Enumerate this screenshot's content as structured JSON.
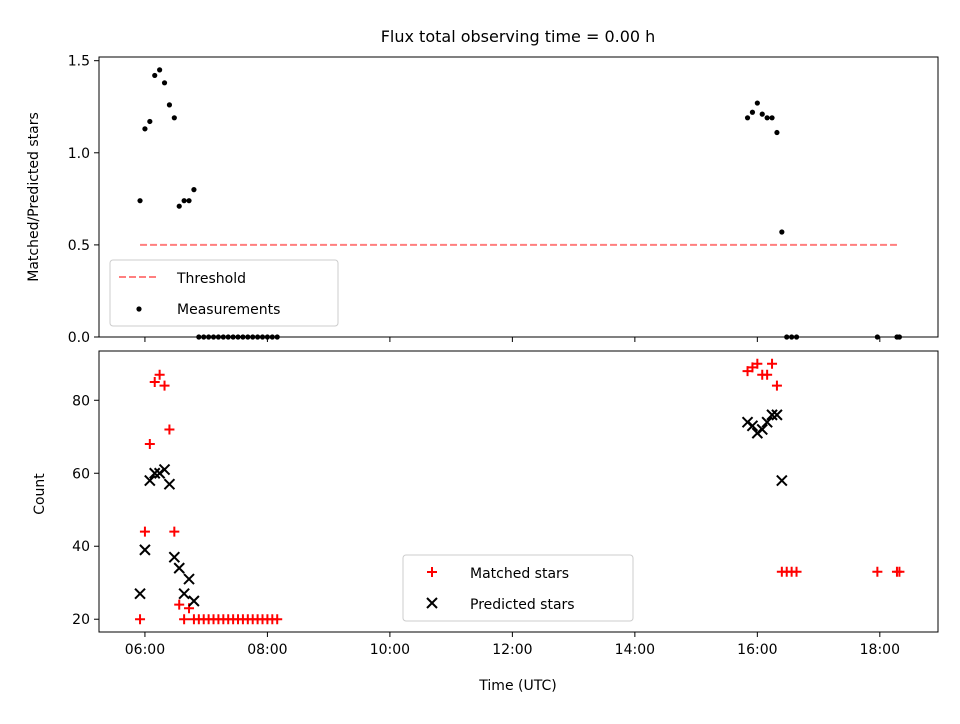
{
  "chart_data": [
    {
      "type": "scatter",
      "title": "Flux total observing time = 0.00 h",
      "xlabel": "",
      "ylabel": "Matched/Predicted stars",
      "xlim": [
        5.25,
        18.95
      ],
      "ylim": [
        0,
        1.52
      ],
      "x_ticks": [
        6,
        8,
        10,
        12,
        14,
        16,
        18
      ],
      "x_tick_labels": [
        "",
        "",
        "",
        "",
        "",
        "",
        ""
      ],
      "y_ticks": [
        0,
        0.5,
        1.0,
        1.5
      ],
      "y_tick_labels": [
        "0.0",
        "0.5",
        "1.0",
        "1.5"
      ],
      "legend_position": "lower-left",
      "series": [
        {
          "name": "Threshold",
          "kind": "line",
          "style": "dashed",
          "color": "#ff7f7f",
          "x": [
            5.92,
            18.28
          ],
          "y": [
            0.5,
            0.5
          ]
        },
        {
          "name": "Measurements",
          "kind": "scatter",
          "marker": "dot",
          "color": "#000000",
          "x": [
            5.92,
            6.0,
            6.08,
            6.16,
            6.24,
            6.32,
            6.4,
            6.48,
            6.56,
            6.64,
            6.72,
            6.8,
            6.88,
            6.96,
            7.04,
            7.12,
            7.2,
            7.28,
            7.36,
            7.44,
            7.52,
            7.6,
            7.68,
            7.76,
            7.84,
            7.92,
            8.0,
            8.08,
            8.16,
            15.84,
            15.92,
            16.0,
            16.08,
            16.16,
            16.24,
            16.32,
            16.4,
            16.48,
            16.56,
            16.64,
            17.96,
            18.28,
            18.32
          ],
          "y": [
            0.74,
            1.13,
            1.17,
            1.42,
            1.45,
            1.38,
            1.26,
            1.19,
            0.71,
            0.74,
            0.74,
            0.8,
            0,
            0,
            0,
            0,
            0,
            0,
            0,
            0,
            0,
            0,
            0,
            0,
            0,
            0,
            0,
            0,
            0,
            1.19,
            1.22,
            1.27,
            1.21,
            1.19,
            1.19,
            1.11,
            0.57,
            0,
            0,
            0,
            0,
            0,
            0
          ]
        }
      ]
    },
    {
      "type": "scatter",
      "title": "",
      "xlabel": "Time (UTC)",
      "ylabel": "Count",
      "xlim": [
        5.25,
        18.95
      ],
      "ylim": [
        16.5,
        93.5
      ],
      "x_ticks": [
        6,
        8,
        10,
        12,
        14,
        16,
        18
      ],
      "x_tick_labels": [
        "06:00",
        "08:00",
        "10:00",
        "12:00",
        "14:00",
        "16:00",
        "18:00"
      ],
      "y_ticks": [
        20,
        40,
        60,
        80
      ],
      "y_tick_labels": [
        "20",
        "40",
        "60",
        "80"
      ],
      "legend_position": "lower-center",
      "series": [
        {
          "name": "Matched stars",
          "kind": "scatter",
          "marker": "plus",
          "color": "#ff0000",
          "x": [
            5.92,
            6.0,
            6.08,
            6.16,
            6.24,
            6.32,
            6.4,
            6.48,
            6.56,
            6.64,
            6.72,
            6.8,
            6.88,
            6.96,
            7.04,
            7.12,
            7.2,
            7.28,
            7.36,
            7.44,
            7.52,
            7.6,
            7.68,
            7.76,
            7.84,
            7.92,
            8.0,
            8.08,
            8.16,
            15.84,
            15.92,
            16.0,
            16.08,
            16.16,
            16.24,
            16.32,
            16.4,
            16.48,
            16.56,
            16.64,
            17.96,
            18.28,
            18.32
          ],
          "y": [
            20,
            44,
            68,
            85,
            87,
            84,
            72,
            44,
            24,
            20,
            23,
            20,
            20,
            20,
            20,
            20,
            20,
            20,
            20,
            20,
            20,
            20,
            20,
            20,
            20,
            20,
            20,
            20,
            20,
            88,
            89,
            90,
            87,
            87,
            90,
            84,
            33,
            33,
            33,
            33,
            33,
            33,
            33
          ]
        },
        {
          "name": "Predicted stars",
          "kind": "scatter",
          "marker": "x",
          "color": "#000000",
          "x": [
            5.92,
            6.0,
            6.08,
            6.16,
            6.24,
            6.32,
            6.4,
            6.48,
            6.56,
            6.64,
            6.72,
            6.8,
            15.84,
            15.92,
            16.0,
            16.08,
            16.16,
            16.24,
            16.32,
            16.4
          ],
          "y": [
            27,
            39,
            58,
            60,
            60,
            61,
            57,
            37,
            34,
            27,
            31,
            25,
            74,
            73,
            71,
            72,
            74,
            76,
            76,
            58
          ]
        }
      ]
    }
  ]
}
